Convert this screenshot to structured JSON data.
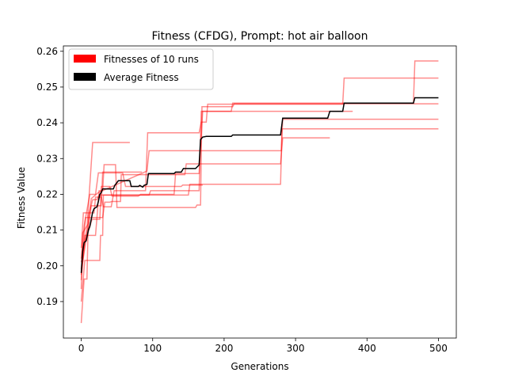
{
  "chart_data": {
    "type": "line",
    "title": "Fitness (CFDG), Prompt: hot air balloon",
    "xlabel": "Generations",
    "ylabel": "Fitness Value",
    "xlim": [
      -25,
      525
    ],
    "ylim": [
      0.1798,
      0.2615
    ],
    "x_ticks": [
      0,
      100,
      200,
      300,
      400,
      500
    ],
    "y_ticks": [
      0.19,
      0.2,
      0.21,
      0.22,
      0.23,
      0.24,
      0.25,
      0.26
    ],
    "x_tick_labels": [
      "0",
      "100",
      "200",
      "300",
      "400",
      "500"
    ],
    "y_tick_labels": [
      "0.19",
      "0.20",
      "0.21",
      "0.22",
      "0.23",
      "0.24",
      "0.25",
      "0.26"
    ],
    "grid": false,
    "legend_position": "upper-left",
    "legend": [
      {
        "label": "Fitnesses of 10 runs",
        "color": "#ff0000"
      },
      {
        "label": "Average Fitness",
        "color": "#000000"
      }
    ],
    "run_color": "#ff0000",
    "run_opacity": 0.45,
    "average_color": "#000000",
    "series": [
      {
        "points": [
          [
            0,
            0.1935
          ],
          [
            2,
            0.2092
          ],
          [
            10,
            0.2118
          ],
          [
            14,
            0.2188
          ],
          [
            24,
            0.2205
          ],
          [
            92,
            0.2265
          ],
          [
            95,
            0.2322
          ],
          [
            280,
            0.2322
          ],
          [
            282,
            0.241
          ],
          [
            500,
            0.241
          ]
        ]
      },
      {
        "points": [
          [
            0,
            0.19
          ],
          [
            5,
            0.2015
          ],
          [
            26,
            0.2015
          ],
          [
            27,
            0.2085
          ],
          [
            30,
            0.2085
          ],
          [
            31,
            0.2198
          ],
          [
            150,
            0.2198
          ],
          [
            152,
            0.2228
          ],
          [
            279,
            0.2228
          ],
          [
            281,
            0.2383
          ],
          [
            500,
            0.2383
          ]
        ]
      },
      {
        "points": [
          [
            0,
            0.184
          ],
          [
            4,
            0.1963
          ],
          [
            8,
            0.1963
          ],
          [
            10,
            0.214
          ],
          [
            16,
            0.2185
          ],
          [
            22,
            0.2185
          ],
          [
            25,
            0.2198
          ],
          [
            95,
            0.2198
          ],
          [
            97,
            0.221
          ],
          [
            165,
            0.221
          ],
          [
            168,
            0.2432
          ],
          [
            210,
            0.2432
          ],
          [
            212,
            0.2455
          ],
          [
            465,
            0.2455
          ],
          [
            467,
            0.2573
          ],
          [
            500,
            0.2573
          ]
        ]
      },
      {
        "points": [
          [
            0,
            0.1975
          ],
          [
            5,
            0.2065
          ],
          [
            10,
            0.211
          ],
          [
            14,
            0.2168
          ],
          [
            28,
            0.2168
          ],
          [
            30,
            0.2262
          ],
          [
            85,
            0.2262
          ]
        ]
      },
      {
        "points": [
          [
            0,
            0.201
          ],
          [
            8,
            0.2105
          ],
          [
            16,
            0.2345
          ],
          [
            68,
            0.2345
          ]
        ]
      },
      {
        "points": [
          [
            0,
            0.199
          ],
          [
            6,
            0.2135
          ],
          [
            30,
            0.2135
          ],
          [
            33,
            0.2178
          ],
          [
            40,
            0.2178
          ],
          [
            43,
            0.218
          ],
          [
            55,
            0.218
          ],
          [
            56,
            0.2255
          ],
          [
            145,
            0.2255
          ],
          [
            147,
            0.2285
          ],
          [
            279,
            0.2285
          ],
          [
            282,
            0.2358
          ],
          [
            348,
            0.2358
          ]
        ]
      },
      {
        "points": [
          [
            0,
            0.196
          ],
          [
            5,
            0.2085
          ],
          [
            20,
            0.2085
          ],
          [
            25,
            0.221
          ],
          [
            30,
            0.221
          ],
          [
            32,
            0.2283
          ],
          [
            48,
            0.2283
          ],
          [
            50,
            0.2163
          ],
          [
            160,
            0.2163
          ],
          [
            162,
            0.217
          ],
          [
            167,
            0.217
          ],
          [
            169,
            0.2445
          ],
          [
            212,
            0.2445
          ],
          [
            214,
            0.2453
          ],
          [
            500,
            0.2453
          ]
        ]
      },
      {
        "points": [
          [
            0,
            0.205
          ],
          [
            3,
            0.2148
          ],
          [
            18,
            0.2148
          ],
          [
            20,
            0.2192
          ],
          [
            28,
            0.2192
          ],
          [
            31,
            0.2165
          ],
          [
            42,
            0.2165
          ],
          [
            46,
            0.221
          ],
          [
            90,
            0.221
          ],
          [
            93,
            0.2372
          ],
          [
            165,
            0.2372
          ],
          [
            168,
            0.2402
          ],
          [
            175,
            0.2402
          ],
          [
            177,
            0.2452
          ],
          [
            366,
            0.2452
          ],
          [
            368,
            0.2525
          ],
          [
            500,
            0.2525
          ]
        ]
      },
      {
        "points": [
          [
            0,
            0.1985
          ],
          [
            7,
            0.2075
          ],
          [
            15,
            0.213
          ],
          [
            26,
            0.213
          ],
          [
            28,
            0.2222
          ],
          [
            40,
            0.2222
          ],
          [
            43,
            0.2195
          ],
          [
            80,
            0.2195
          ],
          [
            83,
            0.22
          ],
          [
            130,
            0.22
          ],
          [
            132,
            0.2258
          ],
          [
            165,
            0.2258
          ],
          [
            170,
            0.2432
          ],
          [
            380,
            0.2432
          ]
        ]
      },
      {
        "points": [
          [
            0,
            0.202
          ],
          [
            4,
            0.2112
          ],
          [
            12,
            0.22
          ],
          [
            20,
            0.22
          ],
          [
            24,
            0.226
          ],
          [
            58,
            0.226
          ],
          [
            62,
            0.2222
          ],
          [
            140,
            0.2222
          ],
          [
            142,
            0.2226
          ],
          [
            170,
            0.2226
          ]
        ]
      }
    ],
    "average": {
      "name": "Average Fitness",
      "points": [
        [
          0,
          0.198
        ],
        [
          2,
          0.204
        ],
        [
          4,
          0.2065
        ],
        [
          7,
          0.207
        ],
        [
          8,
          0.208
        ],
        [
          10,
          0.21
        ],
        [
          12,
          0.211
        ],
        [
          14,
          0.213
        ],
        [
          16,
          0.215
        ],
        [
          18,
          0.216
        ],
        [
          22,
          0.2165
        ],
        [
          24,
          0.218
        ],
        [
          26,
          0.22
        ],
        [
          28,
          0.2205
        ],
        [
          30,
          0.2215
        ],
        [
          45,
          0.2215
        ],
        [
          47,
          0.2225
        ],
        [
          52,
          0.2238
        ],
        [
          68,
          0.2238
        ],
        [
          70,
          0.2222
        ],
        [
          80,
          0.2222
        ],
        [
          82,
          0.2225
        ],
        [
          86,
          0.222
        ],
        [
          88,
          0.2225
        ],
        [
          92,
          0.2228
        ],
        [
          94,
          0.2258
        ],
        [
          130,
          0.2258
        ],
        [
          132,
          0.2262
        ],
        [
          140,
          0.2262
        ],
        [
          143,
          0.2272
        ],
        [
          160,
          0.2272
        ],
        [
          162,
          0.2276
        ],
        [
          165,
          0.2282
        ],
        [
          167,
          0.2353
        ],
        [
          170,
          0.236
        ],
        [
          175,
          0.2362
        ],
        [
          210,
          0.2362
        ],
        [
          212,
          0.2366
        ],
        [
          279,
          0.2366
        ],
        [
          282,
          0.2413
        ],
        [
          345,
          0.2413
        ],
        [
          348,
          0.2432
        ],
        [
          366,
          0.2432
        ],
        [
          368,
          0.2455
        ],
        [
          465,
          0.2455
        ],
        [
          467,
          0.247
        ],
        [
          500,
          0.247
        ]
      ]
    }
  }
}
